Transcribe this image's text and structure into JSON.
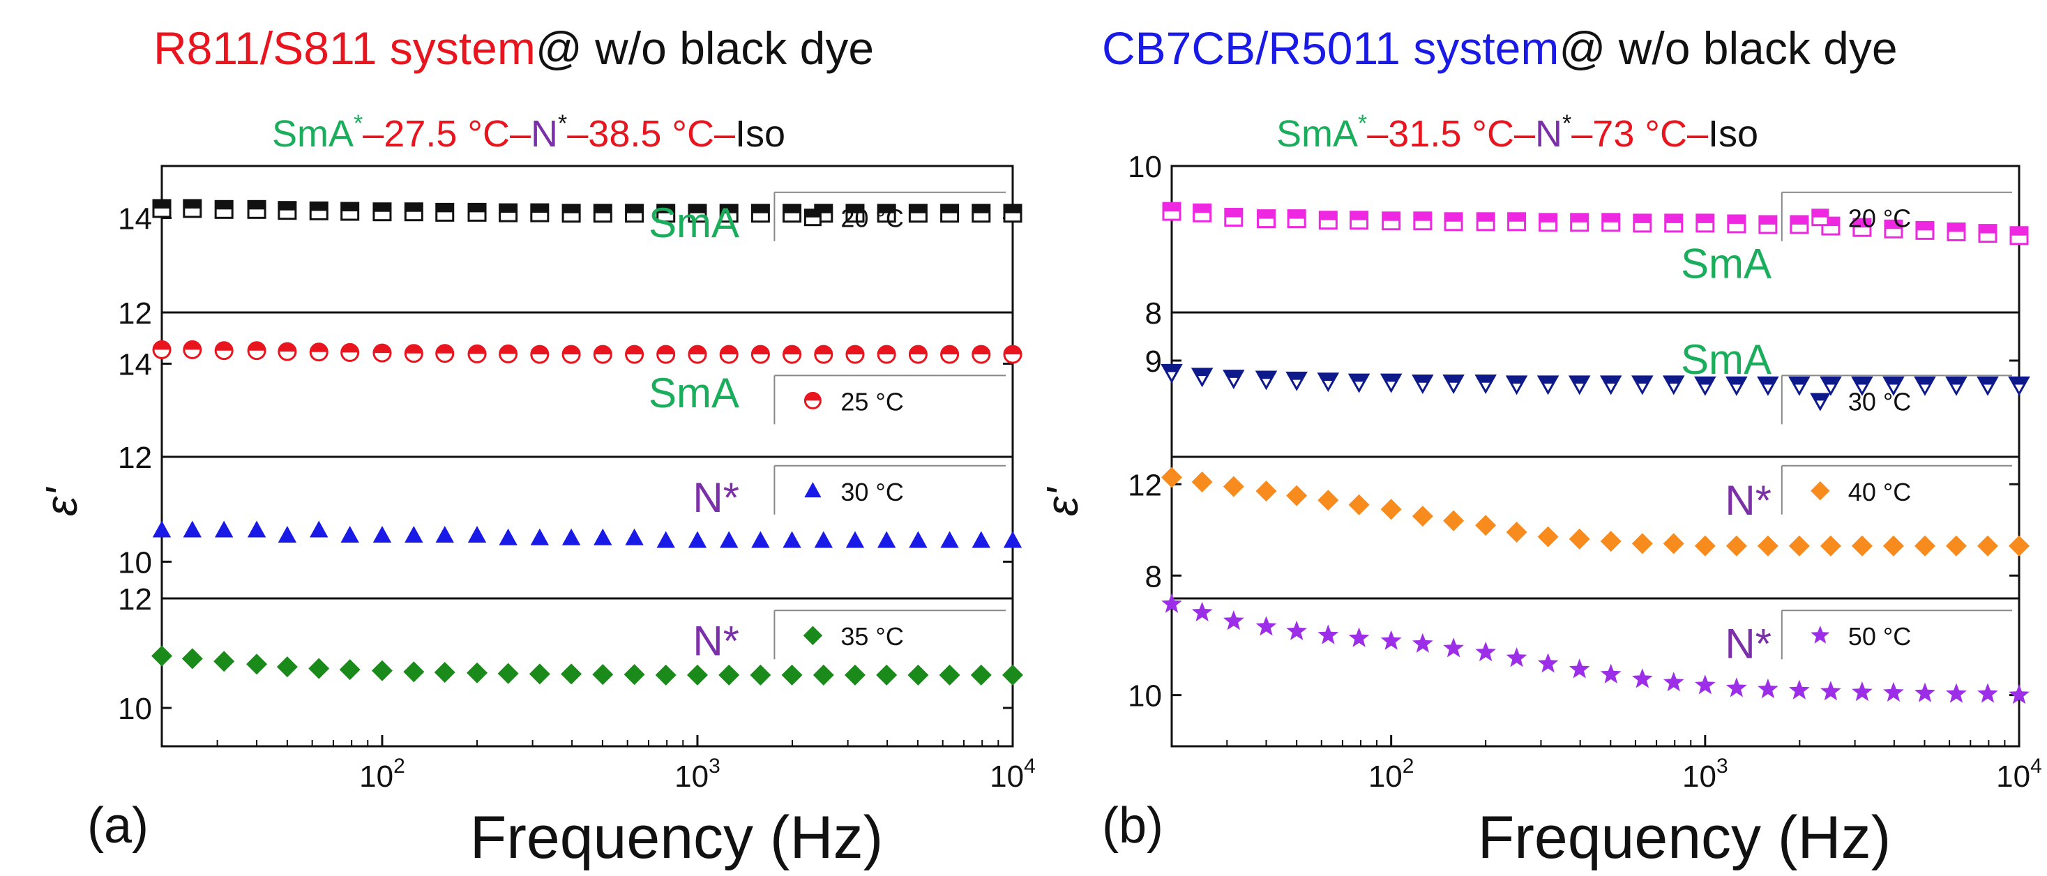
{
  "figure": {
    "panel_a": {
      "label": "(a)",
      "title": {
        "part1": "R811/S811 system",
        "part2": "@ w/o black dye"
      },
      "phase_seq": {
        "a": "SmA",
        "astar": "*",
        "b": "–27.5 °C–",
        "c": "N",
        "cstar": "*",
        "d": "–38.5 °C–",
        "e": "Iso"
      },
      "xlabel": "Frequency (Hz)",
      "ylabel": "ε'"
    },
    "panel_b": {
      "label": "(b)",
      "title": {
        "part1": "CB7CB/R5011 system",
        "part2": "@ w/o black dye"
      },
      "phase_seq": {
        "a": "SmA",
        "astar": "*",
        "b": "–31.5 °C–",
        "c": "N",
        "cstar": "*",
        "d": "–73 °C–",
        "e": "Iso"
      },
      "xlabel": "Frequency (Hz)",
      "ylabel": "ε'"
    }
  },
  "colors": {
    "red": "#e8141e",
    "blue": "#1a1ae6",
    "black": "#111111",
    "green": "#1aae5c",
    "purple": "#7b2fa8"
  },
  "chart_data": [
    {
      "panel": "a",
      "type": "scatter",
      "xscale": "log",
      "xlim": [
        20,
        10000
      ],
      "xticks": [
        {
          "base": "10",
          "exp": "2",
          "value": 100
        },
        {
          "base": "10",
          "exp": "3",
          "value": 1000
        },
        {
          "base": "10",
          "exp": "4",
          "value": 10000
        }
      ],
      "subplots": [
        {
          "phase": "SmA",
          "legend": "20 °C",
          "marker": "square-half",
          "color": "#111111",
          "ylim": [
            12,
            15.1
          ],
          "yticks": [
            12,
            14
          ],
          "x": [
            20,
            25,
            31.5,
            40,
            50,
            63,
            79,
            100,
            126,
            158,
            200,
            251,
            316,
            398,
            501,
            631,
            794,
            1000,
            1259,
            1585,
            1995,
            2512,
            3162,
            3981,
            5012,
            6310,
            7943,
            10000
          ],
          "y": [
            14.2,
            14.2,
            14.18,
            14.18,
            14.16,
            14.15,
            14.14,
            14.13,
            14.13,
            14.12,
            14.12,
            14.11,
            14.11,
            14.1,
            14.1,
            14.1,
            14.1,
            14.1,
            14.1,
            14.1,
            14.1,
            14.1,
            14.1,
            14.1,
            14.1,
            14.1,
            14.1,
            14.1
          ]
        },
        {
          "phase": "SmA",
          "legend": "25 °C",
          "marker": "circle-half",
          "color": "#e8141e",
          "ylim": [
            12,
            15.1
          ],
          "yticks": [
            12,
            14
          ],
          "x": [
            20,
            25,
            31.5,
            40,
            50,
            63,
            79,
            100,
            126,
            158,
            200,
            251,
            316,
            398,
            501,
            631,
            794,
            1000,
            1259,
            1585,
            1995,
            2512,
            3162,
            3981,
            5012,
            6310,
            7943,
            10000
          ],
          "y": [
            14.3,
            14.3,
            14.28,
            14.28,
            14.26,
            14.25,
            14.24,
            14.23,
            14.22,
            14.22,
            14.21,
            14.21,
            14.2,
            14.2,
            14.2,
            14.2,
            14.2,
            14.2,
            14.2,
            14.2,
            14.2,
            14.2,
            14.2,
            14.2,
            14.2,
            14.2,
            14.2,
            14.2
          ]
        },
        {
          "phase": "N*",
          "legend": "30 °C",
          "marker": "triangle-up",
          "color": "#1a1ae6",
          "ylim": [
            9.3,
            12
          ],
          "yticks": [
            10,
            12
          ],
          "x": [
            20,
            25,
            31.5,
            40,
            50,
            63,
            79,
            100,
            126,
            158,
            200,
            251,
            316,
            398,
            501,
            631,
            794,
            1000,
            1259,
            1585,
            1995,
            2512,
            3162,
            3981,
            5012,
            6310,
            7943,
            10000
          ],
          "y": [
            10.6,
            10.6,
            10.6,
            10.6,
            10.5,
            10.6,
            10.5,
            10.5,
            10.5,
            10.5,
            10.5,
            10.45,
            10.45,
            10.45,
            10.45,
            10.45,
            10.4,
            10.4,
            10.4,
            10.4,
            10.4,
            10.4,
            10.4,
            10.4,
            10.4,
            10.4,
            10.4,
            10.4
          ]
        },
        {
          "phase": "N*",
          "legend": "35 °C",
          "marker": "diamond",
          "color": "#1a8a1a",
          "ylim": [
            9.3,
            12
          ],
          "yticks": [
            10,
            12
          ],
          "x": [
            20,
            25,
            31.5,
            40,
            50,
            63,
            79,
            100,
            126,
            158,
            200,
            251,
            316,
            398,
            501,
            631,
            794,
            1000,
            1259,
            1585,
            1995,
            2512,
            3162,
            3981,
            5012,
            6310,
            7943,
            10000
          ],
          "y": [
            10.95,
            10.9,
            10.85,
            10.8,
            10.75,
            10.72,
            10.7,
            10.68,
            10.66,
            10.65,
            10.64,
            10.63,
            10.62,
            10.62,
            10.61,
            10.61,
            10.6,
            10.6,
            10.6,
            10.6,
            10.6,
            10.6,
            10.6,
            10.6,
            10.6,
            10.6,
            10.6,
            10.6
          ]
        }
      ]
    },
    {
      "panel": "b",
      "type": "scatter",
      "xscale": "log",
      "xlim": [
        20,
        10000
      ],
      "xticks": [
        {
          "base": "10",
          "exp": "2",
          "value": 100
        },
        {
          "base": "10",
          "exp": "3",
          "value": 1000
        },
        {
          "base": "10",
          "exp": "4",
          "value": 10000
        }
      ],
      "subplots": [
        {
          "phase": "SmA",
          "legend": "20 °C",
          "marker": "square-half",
          "color": "#ee28e0",
          "ylim": [
            8,
            10
          ],
          "yticks": [
            8,
            10
          ],
          "x": [
            20,
            25,
            31.5,
            40,
            50,
            63,
            79,
            100,
            126,
            158,
            200,
            251,
            316,
            398,
            501,
            631,
            794,
            1000,
            1259,
            1585,
            1995,
            2512,
            3162,
            3981,
            5012,
            6310,
            7943,
            10000
          ],
          "y": [
            9.38,
            9.36,
            9.3,
            9.28,
            9.28,
            9.26,
            9.26,
            9.25,
            9.25,
            9.24,
            9.24,
            9.24,
            9.23,
            9.23,
            9.23,
            9.22,
            9.22,
            9.22,
            9.21,
            9.2,
            9.2,
            9.18,
            9.16,
            9.14,
            9.12,
            9.1,
            9.08,
            9.05
          ]
        },
        {
          "phase": "SmA",
          "legend": "30 °C",
          "marker": "triangle-down",
          "color": "#0e1a8a",
          "ylim": [
            8,
            9.5
          ],
          "yticks": [
            9
          ],
          "x": [
            20,
            25,
            31.5,
            40,
            50,
            63,
            79,
            100,
            126,
            158,
            200,
            251,
            316,
            398,
            501,
            631,
            794,
            1000,
            1259,
            1585,
            1995,
            2512,
            3162,
            3981,
            5012,
            6310,
            7943,
            10000
          ],
          "y": [
            8.88,
            8.84,
            8.82,
            8.81,
            8.8,
            8.79,
            8.78,
            8.78,
            8.77,
            8.77,
            8.77,
            8.76,
            8.76,
            8.76,
            8.76,
            8.76,
            8.76,
            8.75,
            8.75,
            8.75,
            8.75,
            8.75,
            8.75,
            8.75,
            8.75,
            8.75,
            8.75,
            8.75
          ]
        },
        {
          "phase": "N*",
          "legend": "40 °C",
          "marker": "diamond",
          "color": "#f78b1e",
          "ylim": [
            7,
            13.2
          ],
          "yticks": [
            8,
            12
          ],
          "x": [
            20,
            25,
            31.5,
            40,
            50,
            63,
            79,
            100,
            126,
            158,
            200,
            251,
            316,
            398,
            501,
            631,
            794,
            1000,
            1259,
            1585,
            1995,
            2512,
            3162,
            3981,
            5012,
            6310,
            7943,
            10000
          ],
          "y": [
            12.3,
            12.1,
            11.9,
            11.7,
            11.5,
            11.3,
            11.1,
            10.9,
            10.6,
            10.4,
            10.2,
            9.9,
            9.7,
            9.6,
            9.5,
            9.4,
            9.4,
            9.3,
            9.3,
            9.3,
            9.3,
            9.3,
            9.3,
            9.3,
            9.3,
            9.3,
            9.3,
            9.3
          ]
        },
        {
          "phase": "N*",
          "legend": "50 °C",
          "marker": "star",
          "color": "#9b2ee6",
          "ylim": [
            9.1,
            11.7
          ],
          "yticks": [
            10
          ],
          "x": [
            20,
            25,
            31.5,
            40,
            50,
            63,
            79,
            100,
            126,
            158,
            200,
            251,
            316,
            398,
            501,
            631,
            794,
            1000,
            1259,
            1585,
            1995,
            2512,
            3162,
            3981,
            5012,
            6310,
            7943,
            10000
          ],
          "y": [
            11.6,
            11.45,
            11.3,
            11.2,
            11.12,
            11.05,
            11.0,
            10.95,
            10.9,
            10.82,
            10.75,
            10.65,
            10.55,
            10.45,
            10.36,
            10.28,
            10.22,
            10.17,
            10.12,
            10.1,
            10.08,
            10.06,
            10.05,
            10.04,
            10.03,
            10.02,
            10.02,
            10.0
          ]
        }
      ]
    }
  ]
}
